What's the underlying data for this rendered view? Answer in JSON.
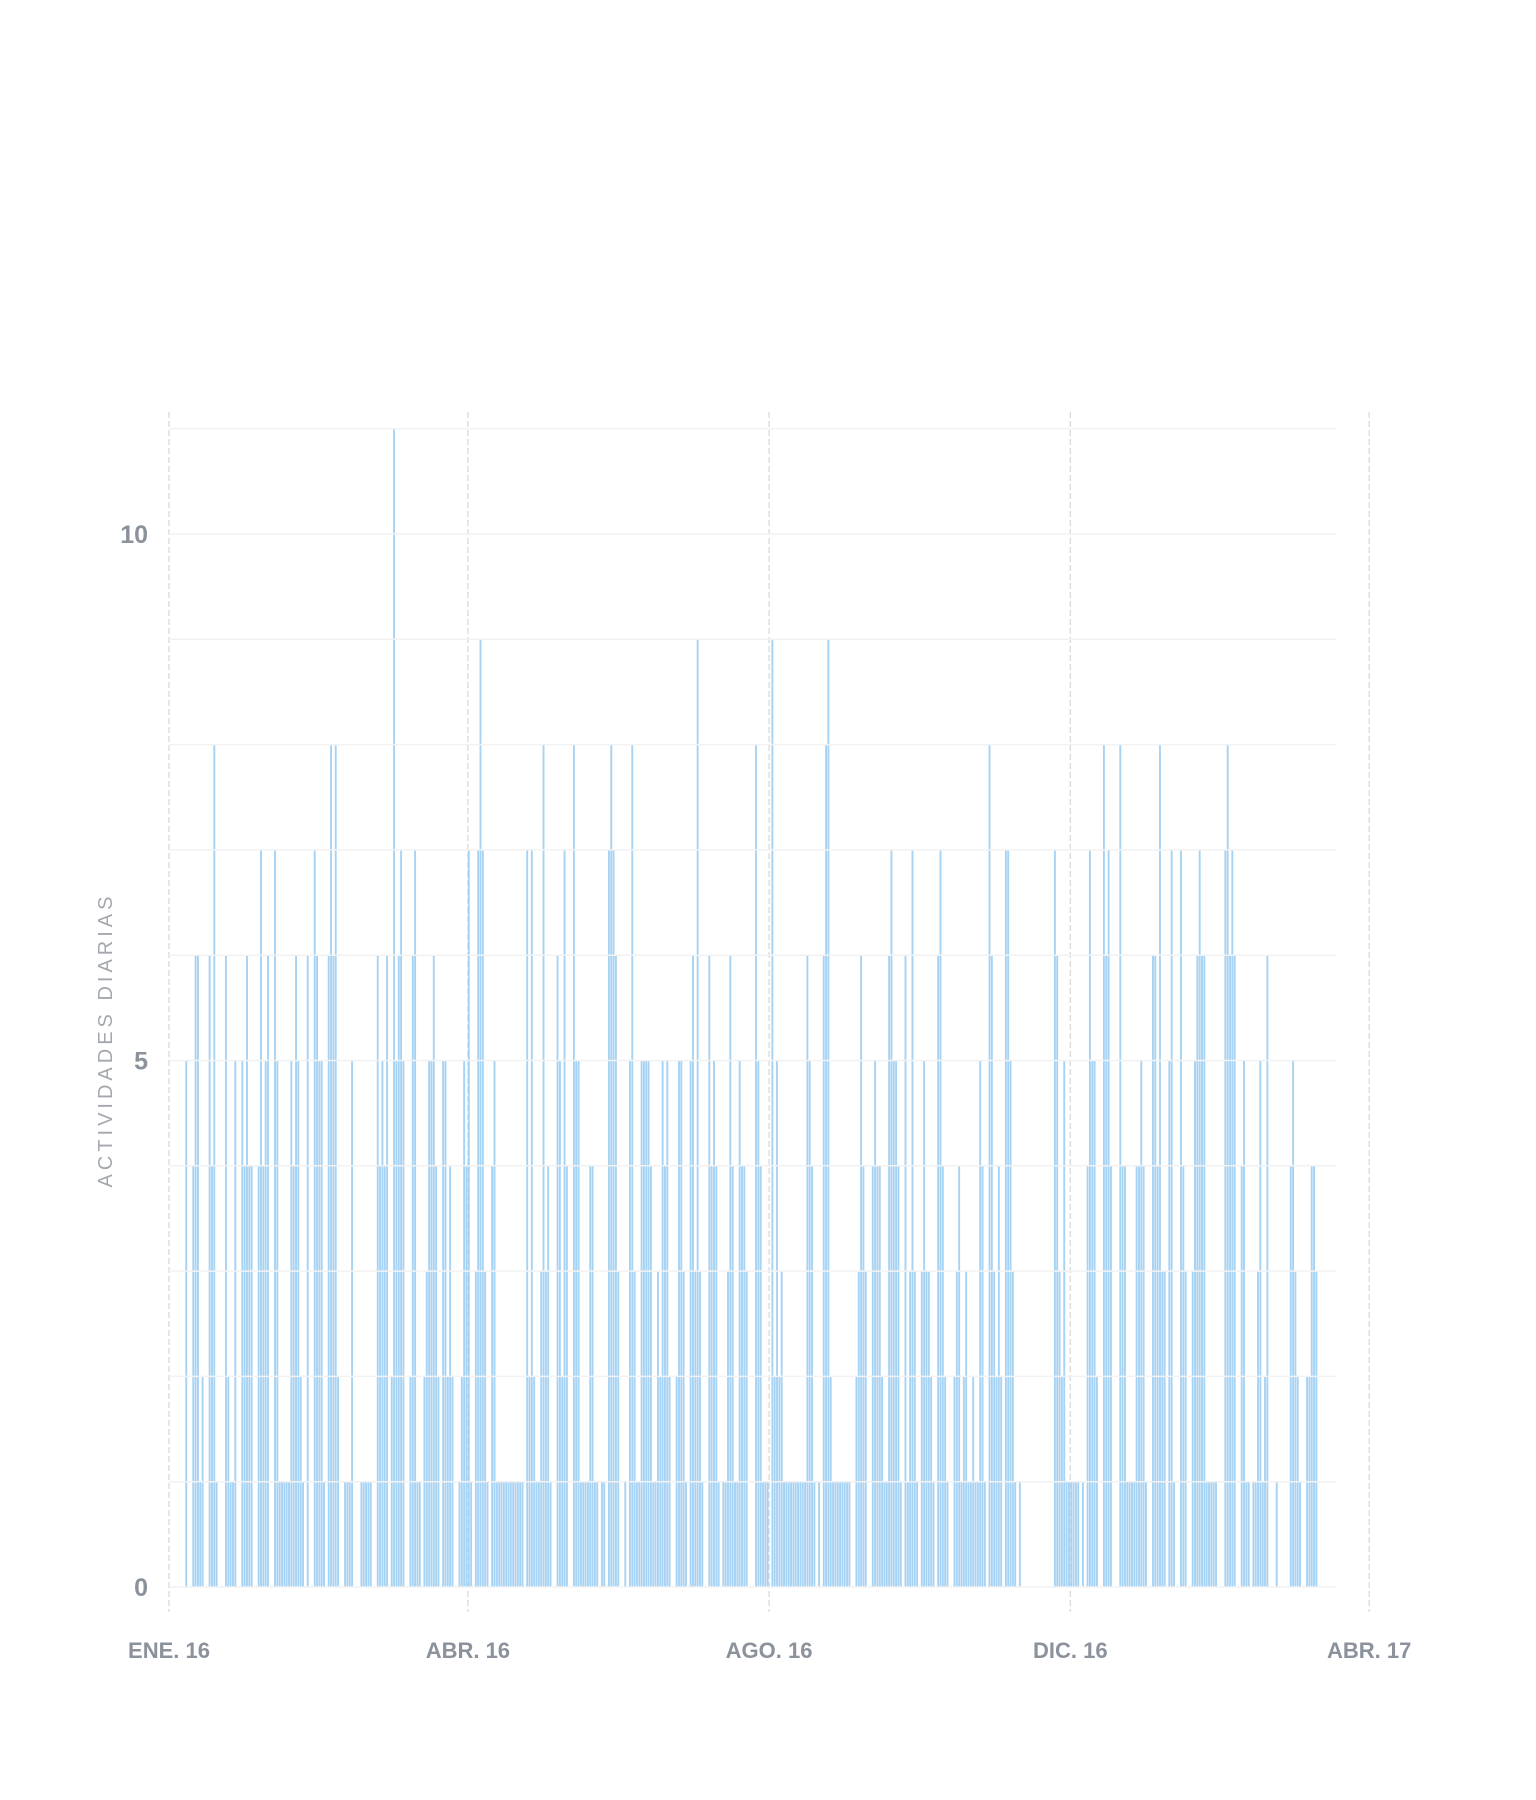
{
  "chart_data": {
    "type": "bar",
    "title": "",
    "xlabel": "",
    "ylabel": "ACTIVIDADES DIARIAS",
    "ylim": [
      0,
      11
    ],
    "y_ticks": [
      {
        "value": 0,
        "label": "0"
      },
      {
        "value": 5,
        "label": "5"
      },
      {
        "value": 10,
        "label": "10"
      }
    ],
    "y_gridlines": [
      0,
      1,
      2,
      3,
      4,
      5,
      6,
      7,
      8,
      9,
      10,
      11
    ],
    "x_unit": "day index",
    "x_ticks": [
      {
        "day": -6,
        "label": "ENE. 16"
      },
      {
        "day": 122,
        "label": "ABR. 16"
      },
      {
        "day": 251,
        "label": "AGO. 16"
      },
      {
        "day": 380,
        "label": "DIC. 16"
      },
      {
        "day": 508,
        "label": "ABR. 17"
      }
    ],
    "grid": true,
    "bar_color": "#a6d2f3",
    "values": [
      0,
      5,
      0,
      0,
      4,
      6,
      6,
      1,
      2,
      0,
      0,
      6,
      4,
      8,
      1,
      0,
      0,
      0,
      6,
      2,
      1,
      1,
      5,
      0,
      0,
      5,
      4,
      6,
      4,
      4,
      0,
      0,
      4,
      7,
      4,
      5,
      6,
      0,
      0,
      7,
      5,
      1,
      1,
      1,
      1,
      1,
      5,
      4,
      6,
      5,
      2,
      1,
      0,
      6,
      0,
      0,
      7,
      6,
      5,
      5,
      1,
      0,
      6,
      8,
      6,
      8,
      2,
      0,
      0,
      1,
      1,
      1,
      5,
      0,
      0,
      0,
      1,
      1,
      1,
      1,
      1,
      0,
      0,
      6,
      4,
      5,
      4,
      6,
      0,
      2,
      11,
      5,
      6,
      7,
      5,
      0,
      0,
      2,
      6,
      7,
      1,
      1,
      0,
      2,
      3,
      5,
      5,
      6,
      4,
      2,
      0,
      5,
      5,
      2,
      4,
      2,
      0,
      0,
      1,
      2,
      5,
      4,
      7,
      1,
      0,
      3,
      7,
      9,
      7,
      3,
      1,
      0,
      4,
      5,
      1,
      1,
      1,
      1,
      1,
      1,
      1,
      1,
      1,
      1,
      1,
      1,
      0,
      7,
      2,
      7,
      2,
      1,
      1,
      3,
      8,
      3,
      4,
      1,
      0,
      0,
      6,
      5,
      2,
      7,
      4,
      0,
      0,
      8,
      5,
      5,
      1,
      1,
      1,
      1,
      4,
      4,
      1,
      1,
      0,
      1,
      1,
      0,
      7,
      8,
      7,
      6,
      3,
      0,
      0,
      1,
      0,
      5,
      8,
      3,
      1,
      1,
      5,
      5,
      5,
      5,
      4,
      1,
      1,
      3,
      2,
      5,
      4,
      5,
      2,
      0,
      0,
      2,
      5,
      5,
      3,
      1,
      0,
      5,
      6,
      3,
      9,
      3,
      1,
      0,
      0,
      6,
      4,
      5,
      4,
      1,
      0,
      1,
      1,
      3,
      6,
      4,
      1,
      1,
      5,
      4,
      4,
      3,
      0,
      0,
      0,
      8,
      5,
      4,
      1,
      1,
      1,
      0,
      9,
      2,
      5,
      2,
      3,
      1,
      1,
      1,
      1,
      1,
      1,
      1,
      1,
      1,
      1,
      6,
      5,
      4,
      1,
      0,
      1,
      0,
      6,
      8,
      9,
      2,
      1,
      1,
      1,
      1,
      1,
      1,
      1,
      1,
      0,
      0,
      2,
      3,
      6,
      4,
      3,
      0,
      0,
      4,
      5,
      4,
      4,
      2,
      1,
      1,
      6,
      7,
      5,
      5,
      4,
      1,
      0,
      6,
      1,
      3,
      7,
      3,
      1,
      0,
      3,
      5,
      3,
      3,
      2,
      1,
      0,
      6,
      7,
      4,
      2,
      1,
      0,
      0,
      2,
      3,
      4,
      1,
      2,
      3,
      1,
      1,
      2,
      1,
      1,
      5,
      4,
      1,
      0,
      8,
      6,
      3,
      2,
      4,
      2,
      0,
      7,
      7,
      5,
      3,
      1,
      0,
      1,
      0,
      0,
      0,
      0,
      0,
      0,
      0,
      0,
      0,
      0,
      0,
      0,
      0,
      0,
      7,
      6,
      3,
      2,
      5,
      1,
      1,
      1,
      1,
      1,
      1,
      0,
      1,
      0,
      4,
      7,
      5,
      5,
      2,
      0,
      0,
      8,
      6,
      7,
      4,
      0,
      0,
      0,
      8,
      4,
      4,
      1,
      1,
      1,
      1,
      4,
      4,
      5,
      4,
      1,
      0,
      0,
      6,
      6,
      4,
      8,
      3,
      3,
      0,
      5,
      7,
      1,
      0,
      0,
      7,
      4,
      3,
      0,
      0,
      3,
      5,
      6,
      7,
      6,
      6,
      1,
      1,
      1,
      1,
      1,
      0,
      0,
      0,
      7,
      8,
      6,
      7,
      6,
      0,
      0,
      4,
      5,
      1,
      1,
      0,
      1,
      1,
      3,
      5,
      1,
      2,
      6,
      0,
      0,
      0,
      1,
      0,
      0,
      0,
      0,
      0,
      4,
      5,
      3,
      2,
      1,
      0,
      0,
      2,
      2,
      4,
      4,
      3
    ]
  }
}
